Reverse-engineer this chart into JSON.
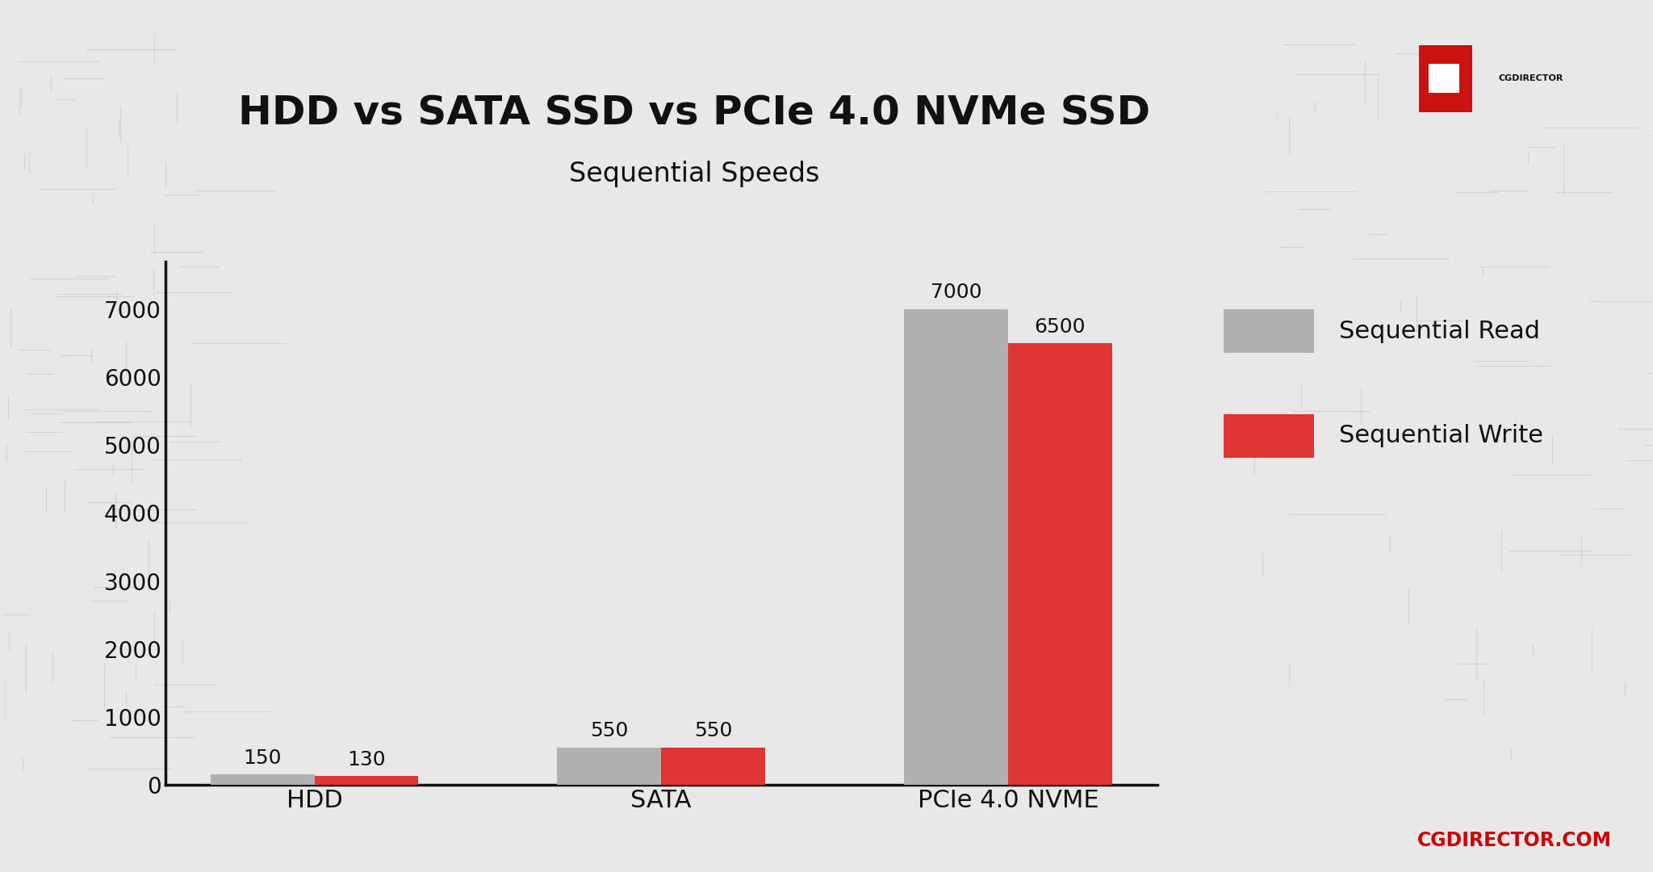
{
  "title": "HDD vs SATA SSD vs PCIe 4.0 NVMe SSD",
  "subtitle": "Sequential Speeds",
  "categories": [
    "HDD",
    "SATA",
    "PCIe 4.0 NVME"
  ],
  "sequential_read": [
    150,
    550,
    7000
  ],
  "sequential_write": [
    130,
    550,
    6500
  ],
  "read_color": "#b0b0b0",
  "write_color": "#e03535",
  "background_color": "#e8e8e8",
  "bar_width": 0.3,
  "ylim": [
    0,
    7700
  ],
  "yticks": [
    0,
    1000,
    2000,
    3000,
    4000,
    5000,
    6000,
    7000
  ],
  "legend_labels": [
    "Sequential Read",
    "Sequential Write"
  ],
  "title_fontsize": 36,
  "subtitle_fontsize": 24,
  "tick_fontsize": 20,
  "label_fontsize": 22,
  "bar_label_fontsize": 18,
  "legend_fontsize": 22,
  "axis_linewidth": 2.5,
  "text_color": "#111111",
  "footer_text": "CGDIRECTOR.COM",
  "footer_color": "#cc0000",
  "logo_bg": "#ffffff",
  "logo_red": "#cc1111"
}
